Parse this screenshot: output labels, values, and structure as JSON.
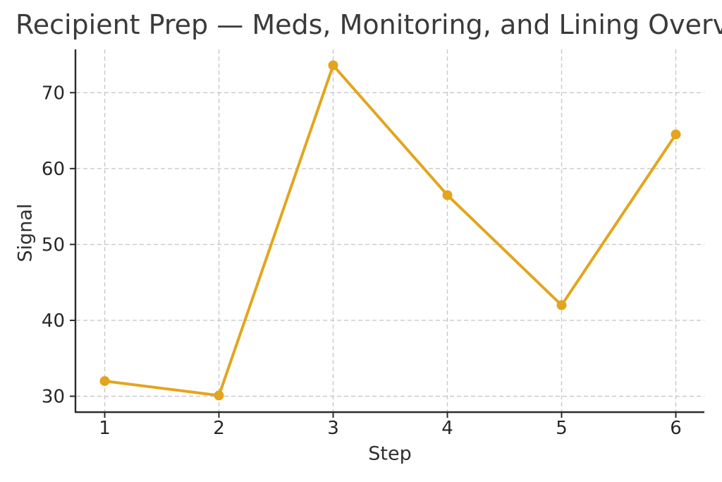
{
  "chart_data": {
    "type": "line",
    "title": "Recipient Prep — Meds, Monitoring, and Lining Overv",
    "xlabel": "Step",
    "ylabel": "Signal",
    "x": [
      1,
      2,
      3,
      4,
      5,
      6
    ],
    "y": [
      32.0,
      30.1,
      73.6,
      56.5,
      42.0,
      64.5
    ],
    "x_ticks": [
      1,
      2,
      3,
      4,
      5,
      6
    ],
    "y_ticks": [
      30,
      40,
      50,
      60,
      70
    ],
    "xlim": [
      0.75,
      6.25
    ],
    "ylim": [
      28.0,
      75.7
    ],
    "grid": "dashed",
    "legend": "none",
    "marker": "circle",
    "line_color": "#E3A51D"
  },
  "style": {
    "background": "#FFFFFF",
    "grid_color": "#C9C9C9",
    "spine_color": "#2B2B2B",
    "tick_color": "#2B2B2B",
    "tick_label_color": "#262626",
    "title_color": "#3A3A3A",
    "axis_label_color": "#2F2F2F"
  }
}
